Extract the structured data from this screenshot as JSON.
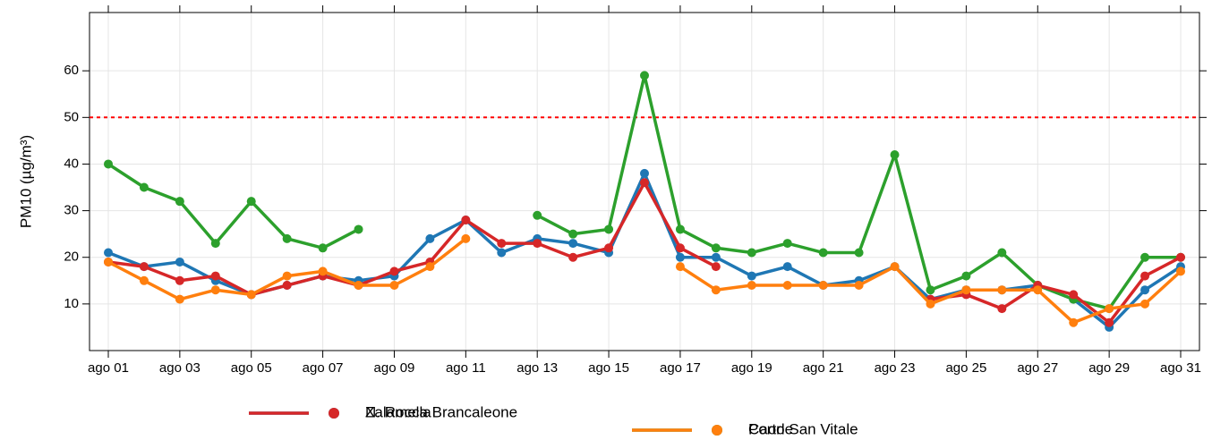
{
  "chart_data": {
    "type": "line",
    "y_label": "PM10 (µg/m³)",
    "categories": [
      "ago 01",
      null,
      "ago 03",
      null,
      "ago 05",
      null,
      "ago 07",
      null,
      "ago 09",
      null,
      "ago 11",
      null,
      "ago 13",
      null,
      "ago 15",
      null,
      "ago 17",
      null,
      "ago 19",
      null,
      "ago 21",
      null,
      "ago 23",
      null,
      "ago 25",
      null,
      "ago 27",
      null,
      "ago 29",
      null,
      "ago 31"
    ],
    "ylim": [
      0,
      72.5
    ],
    "yticks": [
      10,
      20,
      30,
      40,
      50,
      60
    ],
    "grid": true,
    "threshold": 50,
    "threshold_color": "#ff0000",
    "series": [
      {
        "name": "N. Rocca Brancaleone",
        "color": "#1f77b4",
        "values": [
          21,
          18,
          19,
          15,
          12,
          14,
          16,
          15,
          16,
          24,
          28,
          21,
          24,
          23,
          21,
          38,
          20,
          20,
          16,
          18,
          14,
          15,
          18,
          11,
          13,
          13,
          14,
          11,
          5,
          13,
          18
        ]
      },
      {
        "name": "Porto San Vitale",
        "color": "#2ca02c",
        "values": [
          40,
          35,
          32,
          23,
          32,
          24,
          22,
          26,
          null,
          null,
          null,
          null,
          29,
          25,
          26,
          59,
          26,
          22,
          21,
          23,
          21,
          21,
          42,
          13,
          16,
          21,
          14,
          11,
          9,
          20,
          20
        ]
      },
      {
        "name": "Zalamella",
        "color": "#d62728",
        "values": [
          19,
          18,
          15,
          16,
          12,
          14,
          16,
          14,
          17,
          19,
          28,
          23,
          23,
          20,
          22,
          36,
          22,
          18,
          null,
          null,
          null,
          null,
          null,
          11,
          12,
          9,
          14,
          12,
          6,
          16,
          20
        ]
      },
      {
        "name": "Caorle",
        "color": "#ff7f0e",
        "values": [
          19,
          15,
          11,
          13,
          12,
          16,
          17,
          14,
          14,
          18,
          24,
          null,
          null,
          null,
          null,
          null,
          18,
          13,
          14,
          14,
          14,
          14,
          18,
          10,
          13,
          13,
          13,
          6,
          9,
          10,
          17
        ]
      }
    ]
  }
}
